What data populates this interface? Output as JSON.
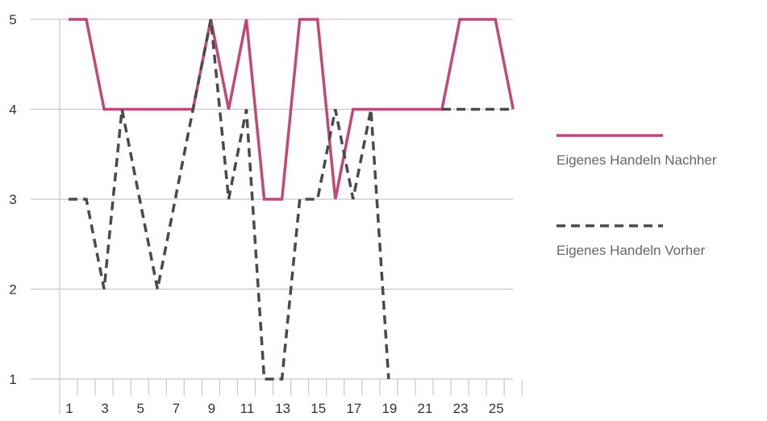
{
  "chart_data": {
    "type": "line",
    "title": "",
    "xlabel": "",
    "ylabel": "",
    "x": [
      1,
      2,
      3,
      4,
      5,
      6,
      7,
      8,
      9,
      10,
      11,
      12,
      13,
      14,
      15,
      16,
      17,
      18,
      19,
      20,
      21,
      22,
      23,
      24,
      25,
      26
    ],
    "x_tick_labels": [
      "1",
      "3",
      "5",
      "7",
      "9",
      "11",
      "13",
      "15",
      "17",
      "19",
      "21",
      "23",
      "25"
    ],
    "x_tick_values": [
      1,
      3,
      5,
      7,
      9,
      11,
      13,
      15,
      17,
      19,
      21,
      23,
      25
    ],
    "y_tick_labels": [
      "1",
      "2",
      "3",
      "4",
      "5"
    ],
    "y_tick_values": [
      1,
      2,
      3,
      4,
      5
    ],
    "xlim": [
      0,
      26
    ],
    "ylim": [
      1,
      5
    ],
    "grid": "horizontal",
    "legend_position": "right",
    "series": [
      {
        "name": "Eigenes Handeln Nachher",
        "color": "#c0487a",
        "style": "solid",
        "points": [
          [
            1,
            5
          ],
          [
            2,
            5
          ],
          [
            3,
            4
          ],
          [
            4,
            4
          ],
          [
            5,
            4
          ],
          [
            6,
            4
          ],
          [
            7,
            4
          ],
          [
            8,
            4
          ],
          [
            9,
            5
          ],
          [
            10,
            4
          ],
          [
            11,
            5
          ],
          [
            12,
            3
          ],
          [
            13,
            3
          ],
          [
            14,
            5
          ],
          [
            15,
            5
          ],
          [
            16,
            3
          ],
          [
            17,
            4
          ],
          [
            18,
            4
          ],
          [
            19,
            4
          ],
          [
            20,
            4
          ],
          [
            21,
            4
          ],
          [
            22,
            4
          ],
          [
            23,
            5
          ],
          [
            24,
            5
          ],
          [
            25,
            5
          ],
          [
            26,
            4
          ]
        ]
      },
      {
        "name": "Eigenes Handeln Vorher",
        "color": "#4a4a4a",
        "style": "dashed",
        "points": [
          [
            1,
            3
          ],
          [
            2,
            3
          ],
          [
            3,
            2
          ],
          [
            4,
            4
          ],
          [
            5,
            3
          ],
          [
            6,
            2
          ],
          [
            7,
            3
          ],
          [
            8,
            4
          ],
          [
            9,
            5
          ],
          [
            10,
            3
          ],
          [
            11,
            4
          ],
          [
            12,
            1
          ],
          [
            13,
            1
          ],
          [
            14,
            3
          ],
          [
            15,
            3
          ],
          [
            16,
            4
          ],
          [
            17,
            3
          ],
          [
            18,
            4
          ],
          [
            19,
            1
          ]
        ],
        "points_tail": [
          [
            22,
            4
          ],
          [
            23,
            4
          ],
          [
            24,
            4
          ],
          [
            25,
            4
          ],
          [
            26,
            4
          ]
        ]
      }
    ]
  }
}
